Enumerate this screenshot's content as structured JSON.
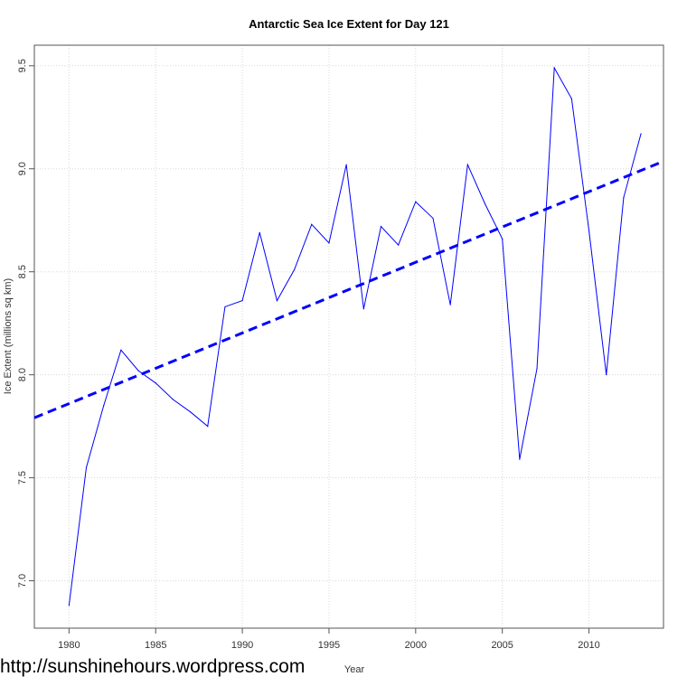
{
  "chart_data": {
    "type": "line",
    "title": "Antarctic Sea Ice Extent for Day 121",
    "xlabel": "Year",
    "ylabel": "Ice Extent (millions sq km)",
    "xlim": [
      1978.0,
      2014.3
    ],
    "ylim": [
      6.77,
      9.6
    ],
    "xticks": [
      1980,
      1985,
      1990,
      1995,
      2000,
      2005,
      2010
    ],
    "yticks": [
      7.0,
      7.5,
      8.0,
      8.5,
      9.0,
      9.5
    ],
    "ytick_labels": [
      "7.0",
      "7.5",
      "8.0",
      "8.5",
      "9.0",
      "9.5"
    ],
    "grid": true,
    "x": [
      1980,
      1981,
      1982,
      1983,
      1984,
      1985,
      1986,
      1987,
      1988,
      1989,
      1990,
      1991,
      1992,
      1993,
      1994,
      1995,
      1996,
      1997,
      1998,
      1999,
      2000,
      2001,
      2002,
      2003,
      2004,
      2005,
      2006,
      2007,
      2008,
      2009,
      2010,
      2011,
      2012,
      2013
    ],
    "series": [
      {
        "values": [
          6.88,
          7.55,
          7.85,
          8.12,
          8.02,
          7.96,
          7.88,
          7.82,
          7.75,
          8.33,
          8.36,
          8.69,
          8.36,
          8.51,
          8.73,
          8.64,
          9.02,
          8.32,
          8.72,
          8.63,
          8.84,
          8.76,
          8.34,
          9.02,
          8.83,
          8.66,
          7.59,
          8.03,
          9.49,
          9.34,
          8.7,
          8.0,
          8.86,
          9.17
        ],
        "color": "#0000ff",
        "style": "solid"
      }
    ],
    "trend": {
      "style": "dashed",
      "color": "#0000ff",
      "value_at_1980": 7.86,
      "slope_per_year": 0.0343
    }
  },
  "watermark": "http://sunshinehours.wordpress.com"
}
